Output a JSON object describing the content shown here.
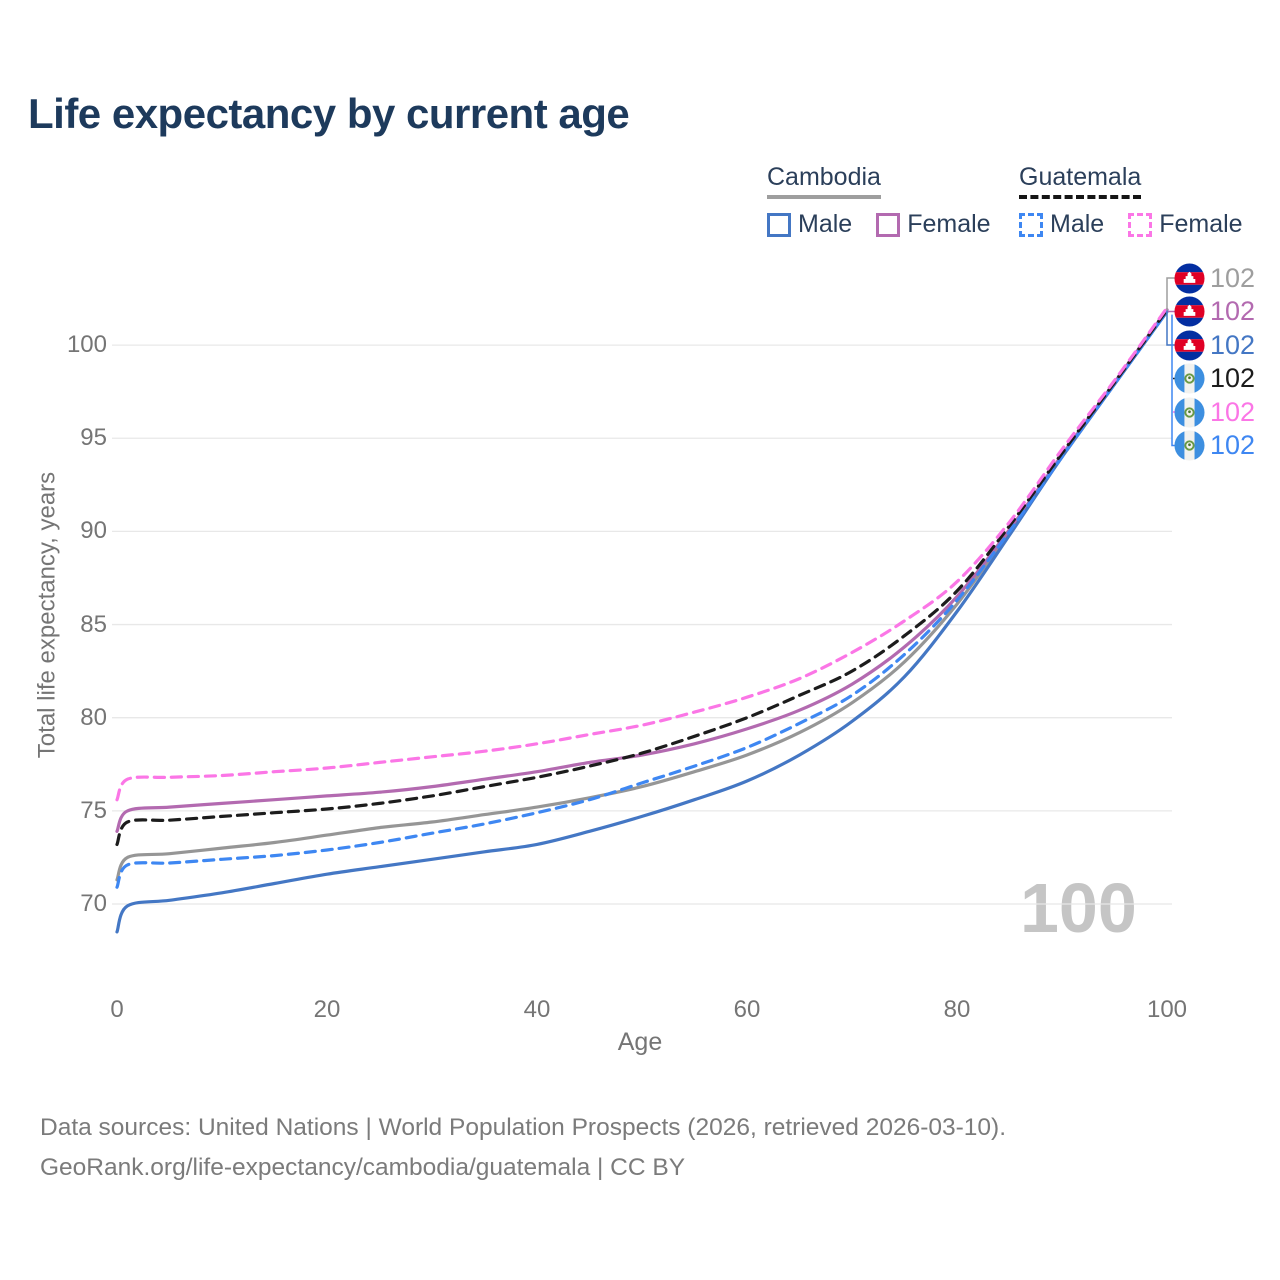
{
  "title": "Life expectancy by current age",
  "legend": {
    "groups": [
      {
        "name": "Cambodia",
        "underline": "solid",
        "underline_color": "#9e9e9e",
        "items": [
          {
            "label": "Male",
            "color": "#4477c4",
            "dash": false
          },
          {
            "label": "Female",
            "color": "#b36ab0",
            "dash": false
          }
        ]
      },
      {
        "name": "Guatemala",
        "underline": "dashed",
        "underline_color": "#151515",
        "items": [
          {
            "label": "Male",
            "color": "#3e87f2",
            "dash": true
          },
          {
            "label": "Female",
            "color": "#fb76e6",
            "dash": true
          }
        ]
      }
    ]
  },
  "watermark": "100",
  "end_labels": [
    {
      "country": "cambodia",
      "value": "102",
      "color": "#9e9e9e"
    },
    {
      "country": "cambodia",
      "value": "102",
      "color": "#b36ab0"
    },
    {
      "country": "cambodia",
      "value": "102",
      "color": "#4477c4"
    },
    {
      "country": "guatemala",
      "value": "102",
      "color": "#1c1c1c"
    },
    {
      "country": "guatemala",
      "value": "102",
      "color": "#fb76e6"
    },
    {
      "country": "guatemala",
      "value": "102",
      "color": "#3e87f2"
    }
  ],
  "footer": {
    "line1": "Data sources: United Nations | World Population Prospects (2026, retrieved 2026-03-10).",
    "line2": "GeoRank.org/life-expectancy/cambodia/guatemala | CC BY"
  },
  "chart_data": {
    "type": "line",
    "title": "Life expectancy by current age",
    "xlabel": "Age",
    "ylabel": "Total life expectancy, years",
    "x_ticks": [
      0,
      20,
      40,
      60,
      80,
      100
    ],
    "y_ticks": [
      70,
      75,
      80,
      85,
      90,
      95,
      100
    ],
    "xlim": [
      0,
      100
    ],
    "ylim": [
      67.5,
      102.5
    ],
    "grid": "horizontal",
    "legend_position": "top-right",
    "x": [
      0,
      1,
      5,
      10,
      15,
      20,
      25,
      30,
      35,
      40,
      45,
      50,
      55,
      60,
      65,
      70,
      75,
      80,
      85,
      90,
      95,
      100
    ],
    "series": [
      {
        "name": "Cambodia Male",
        "color": "#4477c4",
        "dash": false,
        "values": [
          68.5,
          69.9,
          70.2,
          70.6,
          71.1,
          71.6,
          72.0,
          72.4,
          72.8,
          73.2,
          73.9,
          74.7,
          75.6,
          76.6,
          78.0,
          79.8,
          82.2,
          85.7,
          89.8,
          94.0,
          97.9,
          101.8
        ]
      },
      {
        "name": "Cambodia Female",
        "color": "#b36ab0",
        "dash": false,
        "values": [
          73.9,
          75.0,
          75.2,
          75.4,
          75.6,
          75.8,
          76.0,
          76.3,
          76.7,
          77.1,
          77.6,
          78.0,
          78.6,
          79.4,
          80.4,
          81.8,
          83.8,
          86.5,
          90.1,
          94.1,
          98.0,
          101.9
        ]
      },
      {
        "name": "Cambodia all",
        "color": "#969696",
        "dash": false,
        "values": [
          71.3,
          72.5,
          72.7,
          73.0,
          73.3,
          73.7,
          74.1,
          74.4,
          74.8,
          75.2,
          75.7,
          76.3,
          77.1,
          78.0,
          79.2,
          80.8,
          83.0,
          86.1,
          90.0,
          94.0,
          97.9,
          101.8
        ]
      },
      {
        "name": "Guatemala Male",
        "color": "#3e87f2",
        "dash": true,
        "values": [
          70.9,
          72.1,
          72.2,
          72.4,
          72.6,
          72.9,
          73.3,
          73.8,
          74.3,
          74.9,
          75.6,
          76.5,
          77.4,
          78.4,
          79.7,
          81.2,
          83.4,
          86.3,
          90.0,
          94.0,
          97.9,
          101.8
        ]
      },
      {
        "name": "Guatemala Female",
        "color": "#fb76e6",
        "dash": true,
        "values": [
          75.6,
          76.7,
          76.8,
          76.9,
          77.1,
          77.3,
          77.6,
          77.9,
          78.2,
          78.6,
          79.1,
          79.6,
          80.3,
          81.1,
          82.1,
          83.5,
          85.2,
          87.3,
          90.5,
          94.4,
          98.1,
          102.0
        ]
      },
      {
        "name": "Guatemala all",
        "color": "#1c1c1c",
        "dash": true,
        "values": [
          73.2,
          74.4,
          74.5,
          74.7,
          74.9,
          75.1,
          75.4,
          75.8,
          76.3,
          76.8,
          77.4,
          78.1,
          79.0,
          80.0,
          81.2,
          82.5,
          84.4,
          86.8,
          90.3,
          94.2,
          98.0,
          101.9
        ]
      }
    ]
  }
}
